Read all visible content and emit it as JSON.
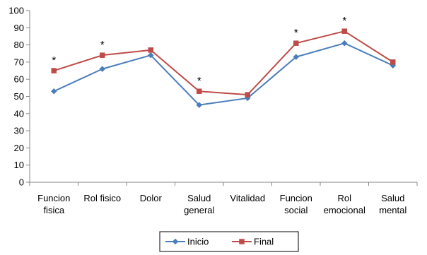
{
  "chart_data": {
    "type": "line",
    "categories": [
      [
        "Funcion",
        "fisica"
      ],
      [
        "Rol fisico"
      ],
      [
        "Dolor"
      ],
      [
        "Salud",
        "general"
      ],
      [
        "Vitalidad"
      ],
      [
        "Funcion",
        "social"
      ],
      [
        "Rol",
        "emocional"
      ],
      [
        "Salud",
        "mental"
      ]
    ],
    "series": [
      {
        "name": "Inicio",
        "color": "#4a7ebb",
        "marker": "diamond",
        "values": [
          53,
          66,
          74,
          45,
          49,
          73,
          81,
          68
        ]
      },
      {
        "name": "Final",
        "color": "#be4b48",
        "marker": "square",
        "values": [
          65,
          74,
          77,
          53,
          51,
          81,
          88,
          70
        ]
      }
    ],
    "significance_marker": "*",
    "significant_indices": [
      0,
      1,
      3,
      5,
      6
    ],
    "yticks": [
      "0",
      "10",
      "20",
      "30",
      "40",
      "50",
      "60",
      "70",
      "80",
      "90",
      "100"
    ],
    "ylim": [
      0,
      100
    ],
    "grid": false,
    "legend_position": "bottom"
  }
}
